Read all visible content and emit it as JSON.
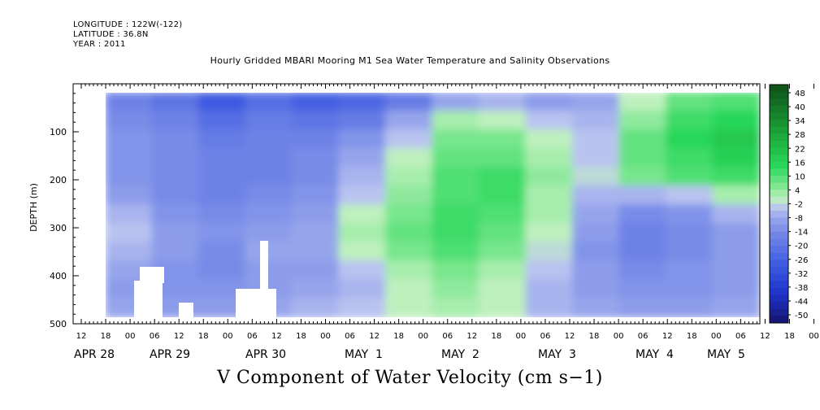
{
  "header": {
    "longitude": "LONGITUDE : 122W(-122)",
    "latitude": "LATITUDE : 36.8N",
    "year": "YEAR : 2011"
  },
  "chart_data": {
    "type": "heatmap",
    "title": "Hourly Gridded MBARI Mooring M1 Sea Water Temperature and Salinity Observations",
    "xlabel": "",
    "ylabel": "DEPTH (m)",
    "footer_label": "V Component of Water Velocity (cm s−1)",
    "y_axis": {
      "ylim": [
        500,
        0
      ],
      "ticks": [
        100,
        200,
        300,
        400,
        500
      ],
      "direction": "depth increases downward"
    },
    "x_axis": {
      "hour_ticks": [
        "12",
        "18",
        "00",
        "06",
        "12",
        "18",
        "00",
        "06",
        "12",
        "18",
        "00",
        "06",
        "12",
        "18",
        "00",
        "06",
        "12",
        "18",
        "00",
        "06",
        "12",
        "18",
        "00",
        "06",
        "12",
        "18",
        "00",
        "06",
        "12",
        "18",
        "00",
        "06"
      ],
      "day_labels": [
        "APR 28",
        "APR 29",
        "APR 30",
        "MAY  1",
        "MAY  2",
        "MAY  3",
        "MAY  4",
        "MAY  5"
      ],
      "range": [
        "APR 28 06:00",
        "MAY 5 12:00"
      ]
    },
    "colorbar": {
      "labels": [
        "48",
        "40",
        "34",
        "28",
        "22",
        "16",
        "10",
        "4",
        "-2",
        "-8",
        "-14",
        "-20",
        "-26",
        "-32",
        "-38",
        "-44",
        "-50"
      ],
      "range": [
        -50,
        50
      ]
    },
    "field": {
      "rows_depth_m": [
        25,
        60,
        100,
        140,
        180,
        220,
        260,
        300,
        340,
        380,
        420,
        460
      ],
      "cols_time": [
        "APR 28 18",
        "APR 29 06",
        "APR 29 18",
        "APR 30 06",
        "APR 30 18",
        "MAY 1 06",
        "MAY 1 18",
        "MAY 2 06",
        "MAY 2 18",
        "MAY 3 06",
        "MAY 3 18",
        "MAY 4 06",
        "MAY 4 18",
        "MAY 5 06"
      ],
      "values_cm_s": [
        [
          -14,
          -18,
          -26,
          -20,
          -24,
          -22,
          -16,
          -6,
          -4,
          -8,
          -6,
          2,
          10,
          12
        ],
        [
          -12,
          -14,
          -20,
          -16,
          -18,
          -16,
          -6,
          4,
          2,
          -2,
          -4,
          6,
          14,
          16
        ],
        [
          -10,
          -12,
          -16,
          -14,
          -14,
          -10,
          -2,
          8,
          8,
          2,
          -2,
          10,
          16,
          20
        ],
        [
          -10,
          -12,
          -14,
          -14,
          -12,
          -6,
          2,
          10,
          10,
          4,
          -2,
          10,
          14,
          18
        ],
        [
          -10,
          -12,
          -14,
          -14,
          -12,
          -4,
          4,
          12,
          14,
          6,
          0,
          8,
          12,
          14
        ],
        [
          -8,
          -12,
          -14,
          -12,
          -10,
          -2,
          6,
          12,
          14,
          4,
          -4,
          -4,
          -2,
          4
        ],
        [
          -4,
          -10,
          -12,
          -10,
          -8,
          2,
          8,
          14,
          12,
          4,
          -6,
          -12,
          -10,
          -4
        ],
        [
          -2,
          -8,
          -10,
          -8,
          -6,
          4,
          10,
          14,
          10,
          2,
          -8,
          -14,
          -12,
          -8
        ],
        [
          -4,
          -8,
          -12,
          -6,
          -6,
          2,
          8,
          12,
          8,
          0,
          -10,
          -14,
          -12,
          -8
        ],
        [
          -6,
          -10,
          -12,
          -8,
          -8,
          -2,
          4,
          8,
          4,
          -2,
          -8,
          -12,
          -10,
          -8
        ],
        [
          -8,
          -10,
          -10,
          -8,
          -6,
          -4,
          2,
          6,
          2,
          -4,
          -8,
          -10,
          -10,
          -8
        ],
        [
          -6,
          -8,
          -8,
          -6,
          -4,
          -2,
          2,
          4,
          2,
          -4,
          -6,
          -8,
          -8,
          -6
        ]
      ]
    }
  }
}
